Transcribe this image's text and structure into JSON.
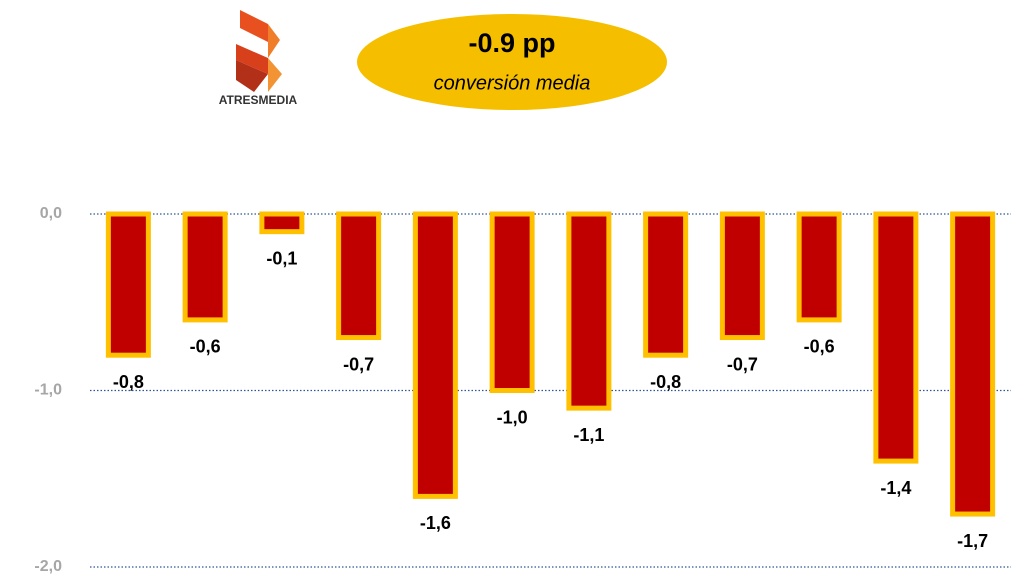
{
  "chart_data": {
    "type": "bar",
    "annotations": {
      "headline": "-0.9 pp",
      "caption": "conversión media",
      "logo": "ATRESMEDIA"
    },
    "categories": [
      null,
      null,
      null,
      null,
      null,
      null,
      null,
      null,
      null,
      null,
      null,
      null
    ],
    "values": [
      -0.8,
      -0.6,
      -0.1,
      -0.7,
      -1.6,
      -1.0,
      -1.1,
      -0.8,
      -0.7,
      -0.6,
      -1.4,
      -1.7
    ],
    "value_labels": [
      "-0,8",
      "-0,6",
      "-0,1",
      "-0,7",
      "-1,6",
      "-1,0",
      "-1,1",
      "-0,8",
      "-0,7",
      "-0,6",
      "-1,4",
      "-1,7"
    ],
    "color": "#c00000",
    "edgecolor": "#ffc000",
    "ylim": [
      -2,
      0
    ],
    "yticks": [
      {
        "value": 0,
        "label": "0,0"
      },
      {
        "value": -1,
        "label": "-1,0"
      },
      {
        "value": -2,
        "label": "-2,0"
      }
    ],
    "grid": true
  }
}
